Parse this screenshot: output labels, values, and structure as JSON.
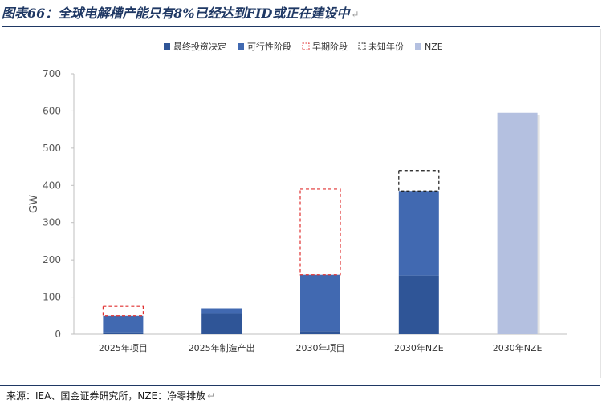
{
  "figure_title": "图表66：全球电解槽产能只有8%已经达到FID或正在建设中",
  "return_mark": "↵",
  "source_note": "来源：IEA、国金证券研究所，NZE：净零排放",
  "colors": {
    "final_decision": "#2f5597",
    "feasibility": "#4169b1",
    "early_stage_border": "#e03030",
    "unknown_year_border": "#1a1a1a",
    "nze": "#b4c0e0",
    "axis_text": "#595959",
    "title": "#1f3864"
  },
  "chart_data": {
    "type": "bar",
    "stacked": true,
    "title": "",
    "xlabel": "",
    "ylabel": "GW",
    "ylim": [
      0,
      700
    ],
    "yticks": [
      0,
      100,
      200,
      300,
      400,
      500,
      600,
      700
    ],
    "grid": false,
    "legend_position": "top",
    "categories": [
      "2025年项目",
      "2025年制造产出",
      "2030年项目",
      "2030年NZE",
      "2030年NZE"
    ],
    "series": [
      {
        "name": "最终投资决定",
        "style": "solid",
        "color_key": "final_decision",
        "values": [
          5,
          55,
          8,
          158,
          0
        ]
      },
      {
        "name": "可行性阶段",
        "style": "solid",
        "color_key": "feasibility",
        "values": [
          45,
          15,
          152,
          227,
          0
        ]
      },
      {
        "name": "早期阶段",
        "style": "dashed",
        "color_key": "early_stage_border",
        "values": [
          25,
          0,
          230,
          0,
          0
        ]
      },
      {
        "name": "未知年份",
        "style": "dashed",
        "color_key": "unknown_year_border",
        "values": [
          0,
          0,
          0,
          55,
          0
        ]
      },
      {
        "name": "NZE",
        "style": "solid",
        "color_key": "nze",
        "values": [
          0,
          0,
          0,
          0,
          595
        ]
      }
    ]
  }
}
